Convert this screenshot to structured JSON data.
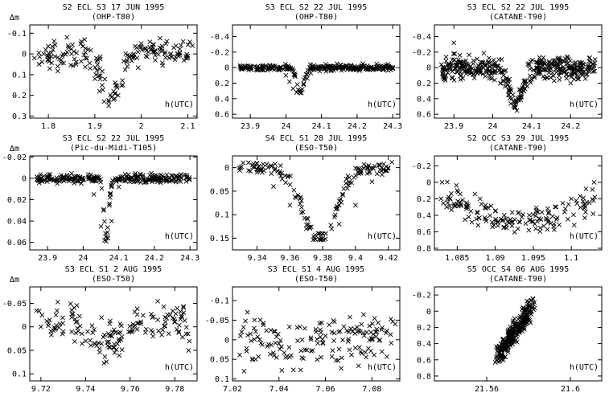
{
  "figure": {
    "ylabel": "Δm",
    "xlabel": "h(UTC)"
  },
  "chart_data": [
    {
      "type": "scatter",
      "title": "S2 ECL S3 17 JUN 1995",
      "subtitle": "(OHP-T80)",
      "xlabel": "h(UTC)",
      "ylabel": "Δm",
      "xlim": [
        1.76,
        2.12
      ],
      "ylim": [
        0.31,
        -0.14
      ],
      "xticks": [
        1.8,
        1.9,
        2,
        2.1
      ],
      "yticks": [
        -0.1,
        0,
        0.1,
        0.2,
        0.3
      ],
      "marker": "x",
      "curve": {
        "kind": "dip",
        "base": 0.0,
        "depth": 0.22,
        "center": 1.935,
        "width": 0.03,
        "noise": 0.04
      },
      "x": [
        1.77,
        1.78,
        1.79,
        1.8,
        1.81,
        1.82,
        1.83,
        1.84,
        1.85,
        1.86,
        1.87,
        1.88,
        1.89,
        1.9,
        1.91,
        1.92,
        1.93,
        1.94,
        1.95,
        1.96,
        1.97,
        1.98,
        1.99,
        2.0,
        2.01,
        2.02,
        2.03,
        2.04,
        2.05,
        2.06,
        2.07,
        2.08,
        2.09,
        2.1,
        2.11
      ],
      "y": [
        0.02,
        0.05,
        0.0,
        0.03,
        -0.02,
        0.06,
        0.01,
        -0.08,
        0.0,
        0.04,
        -0.05,
        0.02,
        0.07,
        0.12,
        0.18,
        0.23,
        0.25,
        0.22,
        0.2,
        0.15,
        0.06,
        0.01,
        -0.03,
        -0.05,
        0.01,
        -0.02,
        0.03,
        -0.03,
        0.0,
        0.02,
        -0.03,
        0.01,
        -0.06,
        0.02,
        -0.04
      ]
    },
    {
      "type": "scatter",
      "title": "S3 ECL S2 22 JUL 1995",
      "subtitle": "(OHP-T80)",
      "xlabel": "h(UTC)",
      "ylabel": "Δm",
      "xlim": [
        23.85,
        24.32
      ],
      "ylim": [
        0.65,
        -0.55
      ],
      "xticks": [
        23.9,
        24,
        24.1,
        24.2,
        24.3
      ],
      "yticks": [
        -0.4,
        -0.2,
        0,
        0.2,
        0.4,
        0.6
      ],
      "marker": "x",
      "curve": {
        "kind": "dip",
        "base": 0.0,
        "depth": 0.32,
        "center": 24.04,
        "width": 0.018,
        "noise": 0.025
      },
      "x": [
        23.9,
        23.92,
        23.94,
        23.96,
        23.98,
        24.0,
        24.01,
        24.02,
        24.03,
        24.04,
        24.05,
        24.06,
        24.07,
        24.08,
        24.1,
        24.12,
        24.14,
        24.16,
        24.18,
        24.2,
        24.22,
        24.24,
        24.26,
        24.28,
        24.3
      ],
      "y": [
        0.0,
        0.02,
        -0.01,
        0.01,
        0.03,
        0.1,
        0.18,
        0.27,
        0.32,
        0.3,
        0.22,
        0.14,
        0.07,
        0.03,
        0.0,
        -0.02,
        0.02,
        -0.01,
        0.0,
        0.01,
        -0.02,
        0.0,
        0.01,
        -0.01,
        0.0
      ]
    },
    {
      "type": "scatter",
      "title": "S3 ECL S2 22 JUL 1995",
      "subtitle": "(CATANE-T90)",
      "xlabel": "h(UTC)",
      "ylabel": "Δm",
      "xlim": [
        23.85,
        24.28
      ],
      "ylim": [
        0.65,
        -0.55
      ],
      "xticks": [
        23.9,
        24,
        24.1,
        24.2
      ],
      "yticks": [
        -0.4,
        -0.2,
        0,
        0.2,
        0.4,
        0.6
      ],
      "marker": "x",
      "curve": {
        "kind": "dip",
        "base": 0.0,
        "depth": 0.45,
        "center": 24.06,
        "width": 0.03,
        "noise": 0.09
      },
      "x": [
        23.9,
        23.95,
        24.0,
        24.02,
        24.04,
        24.06,
        24.08,
        24.1,
        24.12,
        24.15,
        24.17,
        24.2,
        24.22
      ],
      "y": [
        -0.32,
        -0.05,
        0.05,
        0.2,
        0.35,
        0.45,
        0.3,
        0.15,
        0.05,
        -0.05,
        -0.1,
        0.2,
        0.05
      ]
    },
    {
      "type": "scatter",
      "title": "S3 ECL S2 22 JUL 1995",
      "subtitle": "(Pic-du-Midi-T105)",
      "xlabel": "h(UTC)",
      "ylabel": "Δm",
      "xlim": [
        23.85,
        24.32
      ],
      "ylim": [
        0.067,
        -0.021
      ],
      "xticks": [
        23.9,
        24,
        24.1,
        24.2,
        24.3
      ],
      "yticks": [
        -0.02,
        0,
        0.02,
        0.04,
        0.06
      ],
      "marker": "x",
      "curve": {
        "kind": "dip",
        "base": 0.0,
        "depth": 0.058,
        "center": 24.065,
        "width": 0.012,
        "noise": 0.0025
      },
      "x": [
        23.9,
        23.95,
        24.0,
        24.03,
        24.05,
        24.06,
        24.07,
        24.08,
        24.1,
        24.15,
        24.2,
        24.24
      ],
      "y": [
        0.0,
        0.001,
        0.002,
        0.015,
        0.045,
        0.058,
        0.056,
        0.04,
        0.008,
        0.001,
        0.0,
        0.0
      ]
    },
    {
      "type": "scatter",
      "title": "S4 ECL S1 28 JUL 1995",
      "subtitle": "(ESO-T50)",
      "xlabel": "h(UTC)",
      "ylabel": "Δm",
      "xlim": [
        9.325,
        9.427
      ],
      "ylim": [
        0.175,
        -0.025
      ],
      "xticks": [
        9.34,
        9.36,
        9.38,
        9.4,
        9.42
      ],
      "yticks": [
        0,
        0.05,
        0.1,
        0.15
      ],
      "marker": "x",
      "curve": {
        "kind": "dip",
        "base": 0.0,
        "depth": 0.15,
        "center": 9.378,
        "width": 0.018,
        "noise": 0.009
      },
      "x": [
        9.33,
        9.34,
        9.35,
        9.36,
        9.37,
        9.375,
        9.38,
        9.39,
        9.4,
        9.41,
        9.42
      ],
      "y": [
        0.0,
        0.01,
        0.04,
        0.08,
        0.13,
        0.15,
        0.14,
        0.12,
        0.08,
        0.03,
        0.0
      ]
    },
    {
      "type": "scatter",
      "title": "S2 OCC S3 29 JUL 1995",
      "subtitle": "(CATANE-T90)",
      "xlabel": "h(UTC)",
      "ylabel": "Δm",
      "xlim": [
        1.082,
        1.104
      ],
      "ylim": [
        0.82,
        -0.32
      ],
      "xticks": [
        1.085,
        1.09,
        1.095,
        1.1
      ],
      "yticks": [
        -0.2,
        0,
        0.2,
        0.4,
        0.6,
        0.8
      ],
      "marker": "x",
      "curve": {
        "kind": "bowl",
        "base": 0.0,
        "depth": 0.5,
        "center": 1.094,
        "width": 0.007,
        "noise": 0.1
      },
      "x": [
        1.083,
        1.085,
        1.088,
        1.09,
        1.092,
        1.094,
        1.096,
        1.098,
        1.1,
        1.103
      ],
      "y": [
        0.0,
        0.1,
        0.2,
        0.35,
        0.45,
        0.5,
        0.45,
        0.3,
        0.2,
        0.0
      ]
    },
    {
      "type": "scatter",
      "title": "S3 ECL S1 2 AUG 1995",
      "subtitle": "(ESO-T50)",
      "xlabel": "h(UTC)",
      "ylabel": "Δm",
      "xlim": [
        9.715,
        9.79
      ],
      "ylim": [
        0.115,
        -0.085
      ],
      "xticks": [
        9.72,
        9.74,
        9.76,
        9.78
      ],
      "yticks": [
        -0.05,
        0,
        0.05,
        0.1
      ],
      "marker": "x",
      "curve": {
        "kind": "dip",
        "base": -0.01,
        "depth": 0.05,
        "center": 9.748,
        "width": 0.012,
        "noise": 0.028
      },
      "x": [
        9.72,
        9.73,
        9.74,
        9.745,
        9.75,
        9.755,
        9.76,
        9.77,
        9.78
      ],
      "y": [
        0.0,
        0.01,
        0.03,
        0.04,
        0.04,
        0.03,
        0.01,
        -0.02,
        -0.01
      ]
    },
    {
      "type": "scatter",
      "title": "S3 ECL S1 4 AUG 1995",
      "subtitle": "(ESO-T50)",
      "xlabel": "h(UTC)",
      "ylabel": "Δm",
      "xlim": [
        7.02,
        7.092
      ],
      "ylim": [
        0.105,
        -0.135
      ],
      "xticks": [
        7.02,
        7.04,
        7.06,
        7.08
      ],
      "yticks": [
        -0.1,
        -0.05,
        0,
        0.05,
        0.1
      ],
      "marker": "x",
      "curve": {
        "kind": "dip",
        "base": -0.01,
        "depth": 0.03,
        "center": 7.045,
        "width": 0.018,
        "noise": 0.04
      },
      "x": [
        7.025,
        7.03,
        7.04,
        7.05,
        7.06,
        7.07,
        7.08,
        7.09
      ],
      "y": [
        0.08,
        0.05,
        0.01,
        0.0,
        -0.01,
        -0.02,
        0.0,
        -0.04
      ]
    },
    {
      "type": "scatter",
      "title": "S5 OCC S4 06 AUG 1995",
      "subtitle": "(CATANE-T90)",
      "xlabel": "h(UTC)",
      "ylabel": "Δm",
      "xlim": [
        21.535,
        21.615
      ],
      "ylim": [
        0.86,
        -0.3
      ],
      "xticks": [
        21.56,
        21.6
      ],
      "yticks": [
        -0.2,
        0,
        0.2,
        0.4,
        0.6,
        0.8
      ],
      "marker": "x",
      "curve": {
        "kind": "ramp",
        "x0": 21.565,
        "x1": 21.582,
        "y0": 0.55,
        "y1": -0.05,
        "noise": 0.08
      },
      "x": [
        21.565,
        21.568,
        21.572,
        21.575,
        21.578,
        21.582
      ],
      "y": [
        0.55,
        0.45,
        0.35,
        0.25,
        0.12,
        -0.05
      ]
    }
  ]
}
